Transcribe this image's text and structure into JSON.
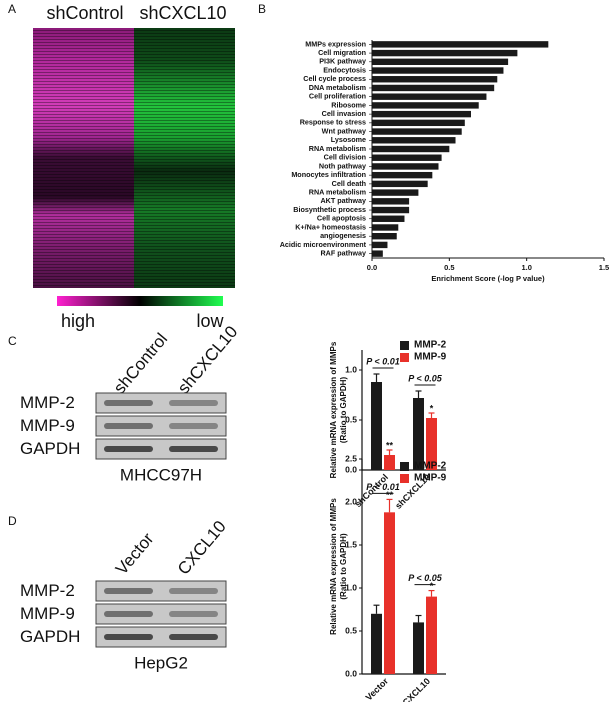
{
  "chart_data": [
    {
      "type": "heatmap",
      "label": "A",
      "columns": [
        "shControl",
        "shCXCL10"
      ],
      "scale": [
        "high",
        "low"
      ]
    },
    {
      "type": "bar",
      "label": "B",
      "horizontal": true,
      "color": "#1a1a1a",
      "categories": [
        "MMPs expression",
        "Cell migration",
        "PI3K pathway",
        "Endocytosis",
        "Cell cycle process",
        "DNA metabolism",
        "Cell proliferation",
        "Ribosome",
        "Cell invasion",
        "Response to stress",
        "Wnt pathway",
        "Lysosome",
        "RNA metabolism",
        "Cell division",
        "Noth pathway",
        "Monocytes infiltration",
        "Cell death",
        "RNA metabolism",
        "AKT pathway",
        "Biosynthetic process",
        "Cell apoptosis",
        "K+/Na+ homeostasis",
        "angiogenesis",
        "Acidic microenvironment",
        "RAF pathway"
      ],
      "values": [
        1.14,
        0.94,
        0.88,
        0.85,
        0.81,
        0.79,
        0.74,
        0.69,
        0.64,
        0.6,
        0.58,
        0.54,
        0.5,
        0.45,
        0.43,
        0.39,
        0.36,
        0.3,
        0.24,
        0.24,
        0.21,
        0.17,
        0.16,
        0.1,
        0.07
      ],
      "xlabel": "Enrichment Score (-log P value)",
      "xlim": [
        0,
        1.5
      ],
      "xticks": [
        {
          "value": 0,
          "label": "0.0"
        },
        0.5,
        {
          "value": 1,
          "label": "1.0"
        },
        1.5
      ]
    },
    {
      "type": "bar",
      "label": "C",
      "categories": [
        "shControl",
        "shCXCL10"
      ],
      "series": [
        {
          "name": "MMP-2",
          "color": "#1a1a1a",
          "values": [
            0.88,
            0.72
          ],
          "errors": [
            0.08,
            0.07
          ]
        },
        {
          "name": "MMP-9",
          "color": "#e8312a",
          "values": [
            0.15,
            0.52
          ],
          "errors": [
            0.05,
            0.05
          ]
        }
      ],
      "star_labels": [
        "**",
        "*"
      ],
      "brackets": [
        "P < 0.01",
        "P < 0.05"
      ],
      "ylabel": [
        "Relative mRNA expression of MMPs",
        "(Ratio to GAPDH)"
      ],
      "ylim": [
        0,
        1.2
      ],
      "yticks": [
        {
          "value": 0,
          "label": "0.0"
        },
        0.5,
        {
          "value": 1,
          "label": "1.0"
        }
      ]
    },
    {
      "type": "bar",
      "label": "D",
      "categories": [
        "Vector",
        "CXCL10"
      ],
      "series": [
        {
          "name": "MMP-2",
          "color": "#1a1a1a",
          "values": [
            0.7,
            0.6
          ],
          "errors": [
            0.1,
            0.08
          ]
        },
        {
          "name": "MMP-9",
          "color": "#e8312a",
          "values": [
            1.88,
            0.9
          ],
          "errors": [
            0.15,
            0.07
          ]
        }
      ],
      "star_labels": [
        "**",
        "*"
      ],
      "brackets": [
        "P < 0.01",
        "P < 0.05"
      ],
      "ylabel": [
        "Relative mRNA expression of MMPs",
        "(Ratio to GAPDH)"
      ],
      "ylim": [
        0,
        2.5
      ],
      "yticks": [
        {
          "value": 0,
          "label": "0.0"
        },
        0.5,
        {
          "value": 1,
          "label": "1.0"
        },
        1.5,
        {
          "value": 2,
          "label": "2.0"
        },
        2.5
      ]
    }
  ],
  "blots": [
    {
      "lanes": [
        "shControl",
        "shCXCL10"
      ],
      "rows": [
        "MMP-2",
        "MMP-9",
        "GAPDH"
      ],
      "cell_line": "MHCC97H"
    },
    {
      "lanes": [
        "Vector",
        "CXCL10"
      ],
      "rows": [
        "MMP-2",
        "MMP-9",
        "GAPDH"
      ],
      "cell_line": "HepG2"
    }
  ]
}
